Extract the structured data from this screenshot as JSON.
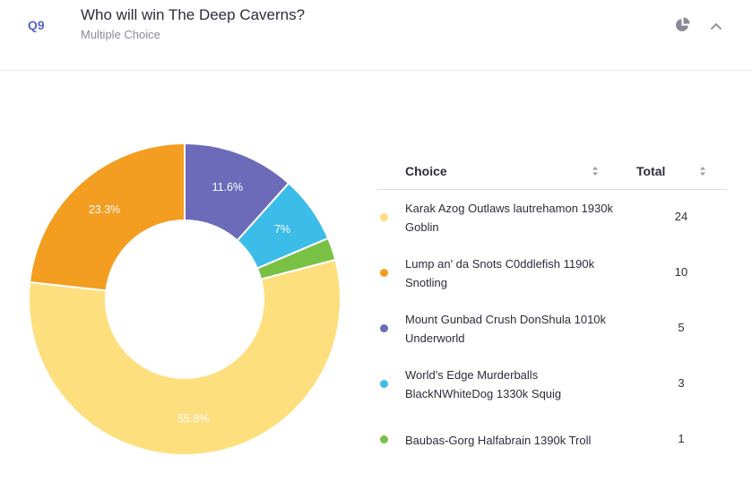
{
  "question": {
    "number": "Q9",
    "title": "Who will win The Deep Caverns?",
    "type": "Multiple Choice"
  },
  "icons": {
    "chart_toggle": "pie-chart-icon",
    "collapse": "chevron-up-icon"
  },
  "table": {
    "header_choice": "Choice",
    "header_total": "Total"
  },
  "chart_data": {
    "type": "pie",
    "donut": true,
    "slices": [
      {
        "label": "Karak Azog Outlaws lautrehamon 1930k Goblin",
        "value": 24,
        "percent_label": "55.8%",
        "color": "#fddf7e"
      },
      {
        "label": "Lump an' da Snots C0ddlefish 1190k Snotling",
        "value": 10,
        "percent_label": "23.3%",
        "color": "#f39d21"
      },
      {
        "label": "Mount Gunbad Crush DonShula 1010k Underworld",
        "value": 5,
        "percent_label": "11.6%",
        "color": "#6b6bb9"
      },
      {
        "label": "World's Edge Murderballs BlackNWhiteDog 1330k Squig",
        "value": 3,
        "percent_label": "7%",
        "color": "#3bbce9"
      },
      {
        "label": "Baubas-Gorg Halfabrain 1390k Troll",
        "value": 1,
        "percent_label": "",
        "color": "#78c145"
      }
    ]
  }
}
